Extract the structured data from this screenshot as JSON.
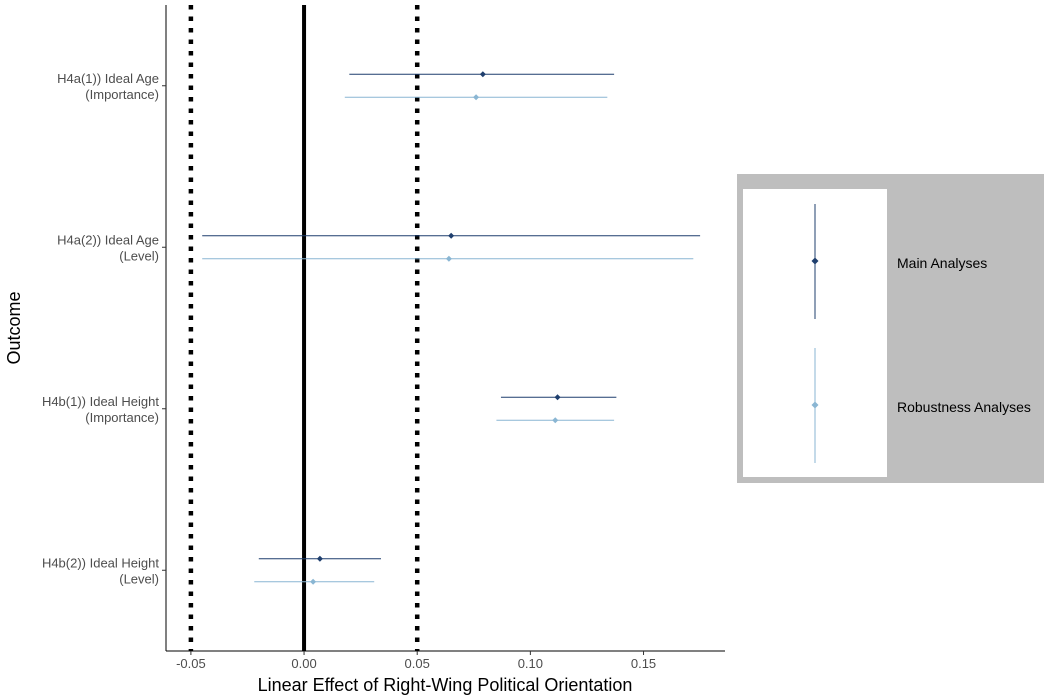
{
  "chart_data": {
    "type": "forest",
    "title": "",
    "xlabel": "Linear Effect of Right-Wing Political Orientation",
    "ylabel": "Outcome",
    "xlim": [
      -0.061,
      0.186
    ],
    "x_ticks": [
      -0.05,
      0,
      0.05,
      0.1,
      0.15
    ],
    "x_tick_labels": [
      "-0.05",
      "0.00",
      "0.05",
      "0.10",
      "0.15"
    ],
    "reference_lines": [
      {
        "x": -0.05,
        "style": "dotted"
      },
      {
        "x": 0,
        "style": "solid"
      },
      {
        "x": 0.05,
        "style": "dotted"
      }
    ],
    "grid": false,
    "legend_position": "right",
    "colors": {
      "main": "#1f3f6e",
      "robust": "#8ab6d3",
      "legend_bg": "#bebebe"
    },
    "categories": [
      {
        "line1": "H4a(1)) Ideal Age",
        "line2": "(Importance)"
      },
      {
        "line1": "H4a(2)) Ideal Age",
        "line2": "(Level)"
      },
      {
        "line1": "H4b(1)) Ideal Height",
        "line2": "(Importance)"
      },
      {
        "line1": "H4b(2)) Ideal Height",
        "line2": "(Level)"
      }
    ],
    "series": [
      {
        "name": "Main Analyses",
        "estimates": [
          0.079,
          0.065,
          0.112,
          0.007
        ],
        "lower": [
          0.02,
          -0.045,
          0.087,
          -0.02
        ],
        "upper": [
          0.137,
          0.175,
          0.138,
          0.034
        ]
      },
      {
        "name": "Robustness Analyses",
        "estimates": [
          0.076,
          0.064,
          0.111,
          0.004
        ],
        "lower": [
          0.018,
          -0.045,
          0.085,
          -0.022
        ],
        "upper": [
          0.134,
          0.172,
          0.137,
          0.031
        ]
      }
    ]
  }
}
